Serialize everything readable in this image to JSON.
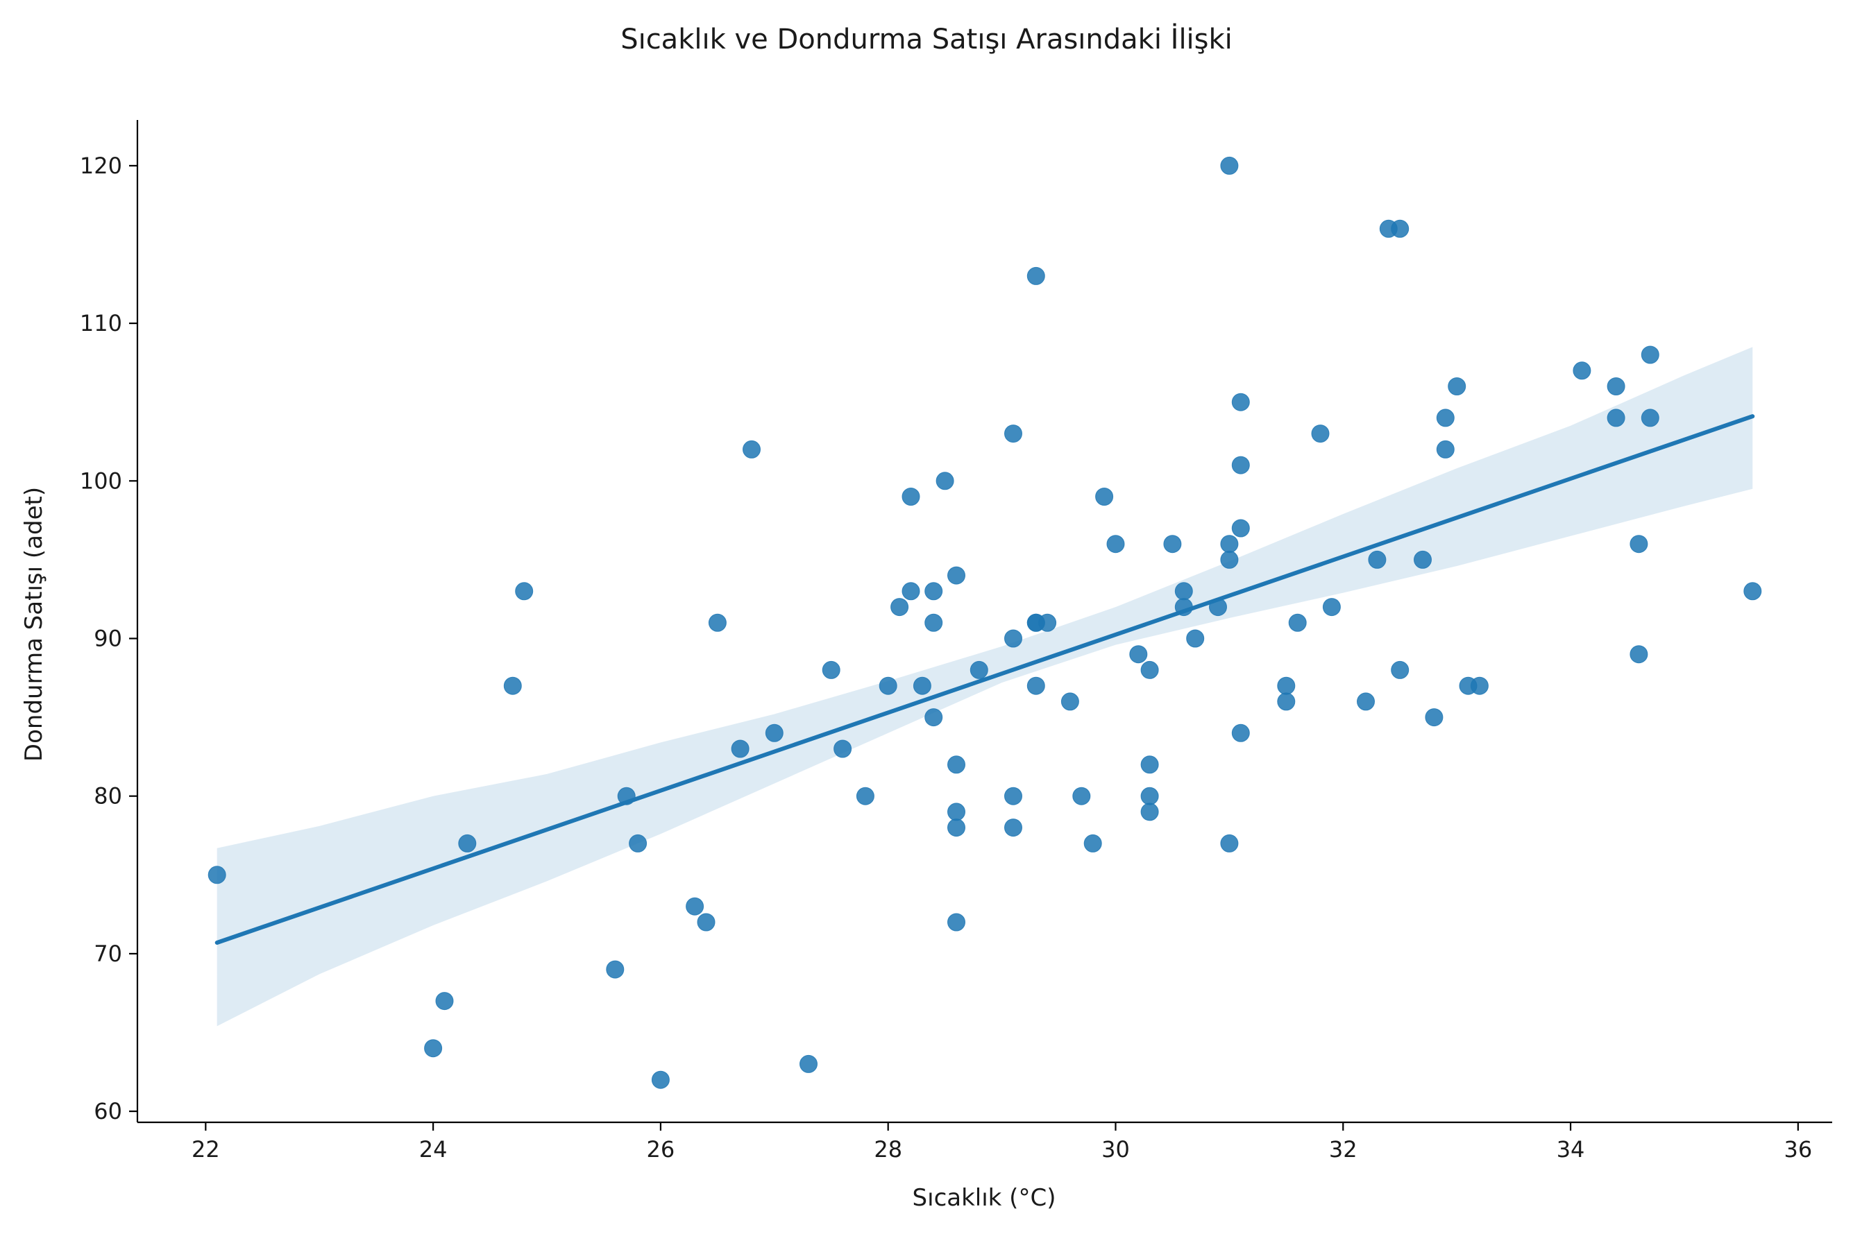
{
  "chart_data": {
    "type": "scatter",
    "title": "Sıcaklık ve Dondurma Satışı Arasındaki İlişki",
    "xlabel": "Sıcaklık (°C)",
    "ylabel": "Dondurma Satışı (adet)",
    "xlim": [
      21.4,
      36.3
    ],
    "ylim": [
      59.3,
      122.9
    ],
    "xticks": [
      22,
      24,
      26,
      28,
      30,
      32,
      34,
      36
    ],
    "yticks": [
      60,
      70,
      80,
      90,
      100,
      110,
      120
    ],
    "grid": false,
    "colors": {
      "points": "#1f77b4",
      "line": "#1f77b4",
      "band": "#1f77b4"
    },
    "series": [
      {
        "x": [
          22.1,
          24.0,
          24.1,
          24.3,
          24.7,
          24.8,
          25.6,
          25.7,
          25.8,
          26.0,
          26.3,
          26.4,
          26.5,
          26.7,
          26.8,
          27.0,
          27.3,
          27.5,
          27.6,
          27.8,
          28.0,
          28.1,
          28.2,
          28.2,
          28.3,
          28.4,
          28.4,
          28.4,
          28.5,
          28.6,
          28.6,
          28.6,
          28.6,
          28.6,
          28.8,
          29.1,
          29.1,
          29.1,
          29.1,
          29.3,
          29.3,
          29.3,
          29.3,
          29.4,
          29.6,
          29.7,
          29.8,
          29.9,
          30.0,
          30.2,
          30.3,
          30.3,
          30.3,
          30.3,
          30.5,
          30.6,
          30.6,
          30.7,
          30.9,
          31.0,
          31.0,
          31.0,
          31.0,
          31.1,
          31.1,
          31.1,
          31.1,
          31.5,
          31.5,
          31.6,
          31.8,
          31.9,
          32.2,
          32.3,
          32.4,
          32.5,
          32.5,
          32.7,
          32.8,
          32.9,
          32.9,
          33.0,
          33.1,
          33.2,
          34.1,
          34.4,
          34.4,
          34.6,
          34.6,
          34.7,
          34.7,
          35.6
        ],
        "y": [
          75,
          64,
          67,
          77,
          87,
          93,
          69,
          80,
          77,
          62,
          73,
          72,
          91,
          83,
          102,
          84,
          63,
          88,
          83,
          80,
          87,
          92,
          99,
          93,
          87,
          93,
          91,
          85,
          100,
          94,
          82,
          79,
          78,
          72,
          88,
          103,
          90,
          80,
          78,
          113,
          91,
          91,
          87,
          91,
          86,
          80,
          77,
          99,
          96,
          89,
          88,
          82,
          80,
          79,
          96,
          93,
          92,
          90,
          92,
          120,
          96,
          95,
          77,
          105,
          101,
          97,
          84,
          87,
          86,
          91,
          103,
          92,
          86,
          95,
          116,
          116,
          88,
          95,
          85,
          104,
          102,
          106,
          87,
          87,
          107,
          106,
          104,
          96,
          89,
          108,
          104,
          93
        ]
      }
    ],
    "regression": {
      "x": [
        22.1,
        35.6
      ],
      "y": [
        70.7,
        104.1
      ],
      "ci_x": [
        22.1,
        23.0,
        24.0,
        25.0,
        26.0,
        27.0,
        28.0,
        29.0,
        30.0,
        31.0,
        32.0,
        33.0,
        34.0,
        35.0,
        35.6
      ],
      "ci_lower": [
        65.4,
        68.7,
        71.8,
        74.6,
        77.6,
        80.8,
        84.0,
        87.2,
        89.6,
        91.3,
        92.9,
        94.6,
        96.5,
        98.4,
        99.5
      ],
      "ci_upper": [
        76.7,
        78.1,
        80.0,
        81.4,
        83.4,
        85.2,
        87.3,
        89.5,
        92.0,
        94.9,
        97.9,
        100.8,
        103.5,
        106.7,
        108.5
      ]
    }
  }
}
